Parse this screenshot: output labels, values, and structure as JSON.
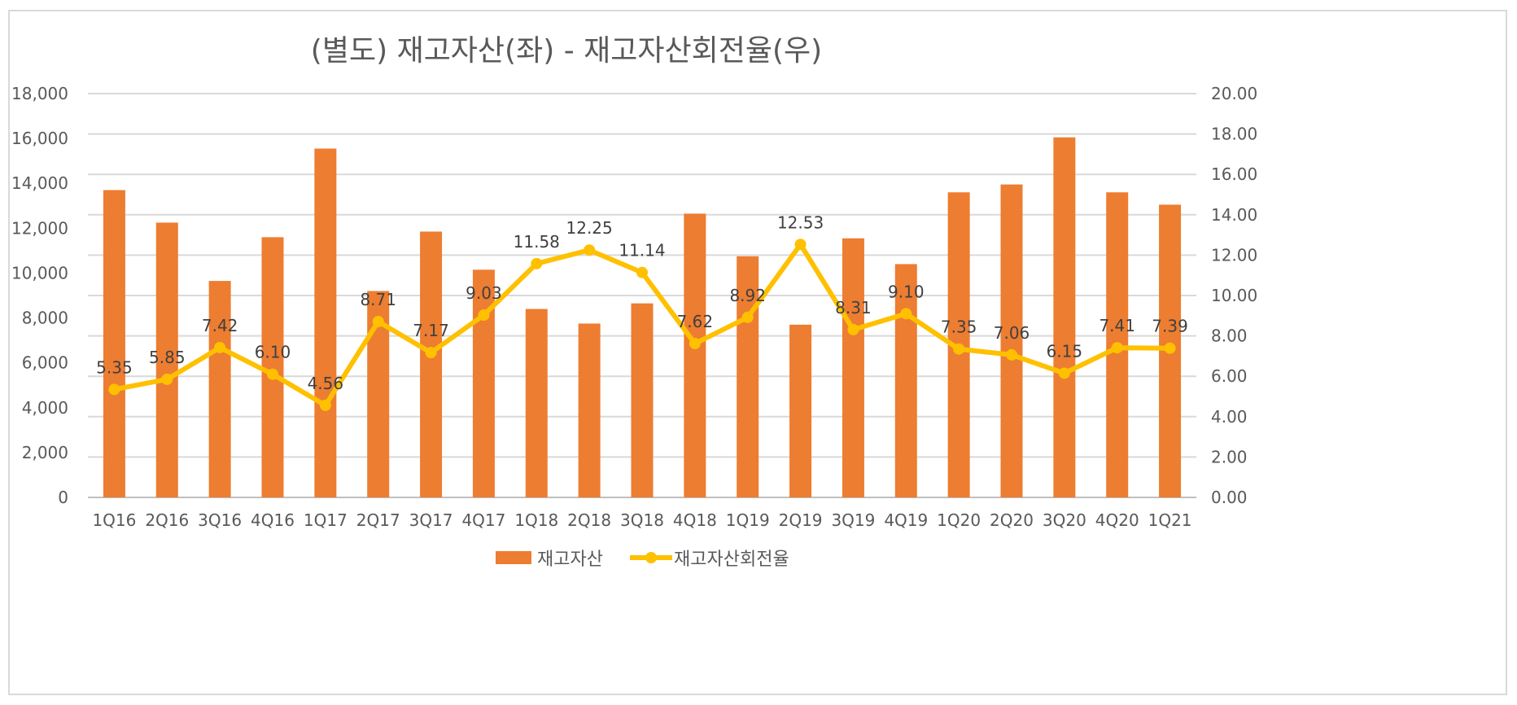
{
  "chart_data": {
    "type": "bar+line",
    "title": "(별도) 재고자산(좌) - 재고자산회전율(우)",
    "categories": [
      "1Q16",
      "2Q16",
      "3Q16",
      "4Q16",
      "1Q17",
      "2Q17",
      "3Q17",
      "4Q17",
      "1Q18",
      "2Q18",
      "3Q18",
      "4Q18",
      "1Q19",
      "2Q19",
      "3Q19",
      "4Q19",
      "1Q20",
      "2Q20",
      "3Q20",
      "4Q20",
      "1Q21"
    ],
    "series": [
      {
        "name": "재고자산",
        "type": "bar",
        "axis": "left",
        "color": "#ED7D31",
        "values": [
          13700,
          12250,
          9650,
          11600,
          15550,
          9200,
          11850,
          10150,
          8400,
          7750,
          8650,
          12650,
          10750,
          7700,
          11550,
          10400,
          13600,
          13950,
          16050,
          13600,
          13050
        ]
      },
      {
        "name": "재고자산회전율",
        "type": "line",
        "axis": "right",
        "color": "#FFC000",
        "values": [
          5.35,
          5.85,
          7.42,
          6.1,
          4.56,
          8.71,
          7.17,
          9.03,
          11.58,
          12.25,
          11.14,
          7.62,
          8.92,
          12.53,
          8.31,
          9.1,
          7.35,
          7.06,
          6.15,
          7.41,
          7.39
        ],
        "labels": [
          "5.35",
          "5.85",
          "7.42",
          "6.10",
          "4.56",
          "8.71",
          "7.17",
          "9.03",
          "11.58",
          "12.25",
          "11.14",
          "7.62",
          "8.92",
          "12.53",
          "8.31",
          "9.10",
          "7.35",
          "7.06",
          "6.15",
          "7.41",
          "7.39"
        ]
      }
    ],
    "y_left": {
      "min": 0,
      "max": 18000,
      "step": 2000,
      "tick_labels": [
        "0",
        "2,000",
        "4,000",
        "6,000",
        "8,000",
        "10,000",
        "12,000",
        "14,000",
        "16,000",
        "18,000"
      ]
    },
    "y_right": {
      "min": 0,
      "max": 20,
      "step": 2,
      "tick_labels": [
        "0.00",
        "2.00",
        "4.00",
        "6.00",
        "8.00",
        "10.00",
        "12.00",
        "14.00",
        "16.00",
        "18.00",
        "20.00"
      ]
    },
    "grid": true,
    "legend_position": "bottom-center"
  }
}
